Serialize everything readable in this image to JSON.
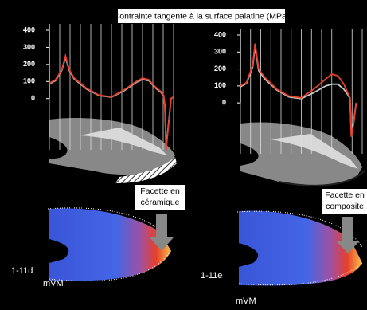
{
  "figure_title": "Contrainte tangente à la surface palatine (MPa)",
  "chart_data": [
    {
      "type": "line",
      "xlim": [
        0,
        100
      ],
      "ylim": [
        -300,
        400
      ],
      "yticks": [
        400,
        300,
        200,
        100,
        0
      ],
      "x": [
        0,
        5,
        10,
        13,
        16,
        20,
        30,
        40,
        50,
        60,
        70,
        75,
        80,
        85,
        90,
        92,
        93,
        94,
        96,
        98,
        100
      ],
      "series": [
        {
          "color": "#b8b8b8",
          "values": [
            85,
            105,
            165,
            240,
            165,
            115,
            55,
            18,
            8,
            45,
            95,
            112,
            105,
            65,
            35,
            15,
            -40,
            -280,
            -140,
            0,
            10
          ]
        },
        {
          "color": "#e8402a",
          "values": [
            90,
            110,
            170,
            250,
            170,
            120,
            60,
            20,
            10,
            50,
            100,
            120,
            110,
            70,
            40,
            20,
            -50,
            -300,
            -150,
            0,
            10
          ]
        }
      ],
      "annotation": [
        "Facette en",
        "céramique"
      ],
      "panel_label": "1-11d",
      "map_label": "mVM"
    },
    {
      "type": "line",
      "xlim": [
        0,
        100
      ],
      "ylim": [
        -300,
        400
      ],
      "yticks": [
        400,
        300,
        200,
        100,
        0
      ],
      "x": [
        0,
        5,
        10,
        12,
        15,
        20,
        30,
        40,
        50,
        60,
        70,
        75,
        80,
        85,
        88,
        90,
        91,
        93,
        95
      ],
      "series": [
        {
          "color": "#c8c8c8",
          "values": [
            95,
            115,
            210,
            330,
            190,
            140,
            75,
            35,
            25,
            60,
            100,
            110,
            110,
            80,
            50,
            25,
            -180,
            -110,
            0
          ]
        },
        {
          "color": "#e8402a",
          "values": [
            100,
            120,
            220,
            350,
            200,
            150,
            80,
            40,
            30,
            80,
            140,
            170,
            160,
            110,
            60,
            30,
            -200,
            -120,
            0
          ]
        }
      ],
      "annotation": [
        "Facette en",
        "composite"
      ],
      "panel_label": "1-11e",
      "map_label": "mVM"
    }
  ]
}
